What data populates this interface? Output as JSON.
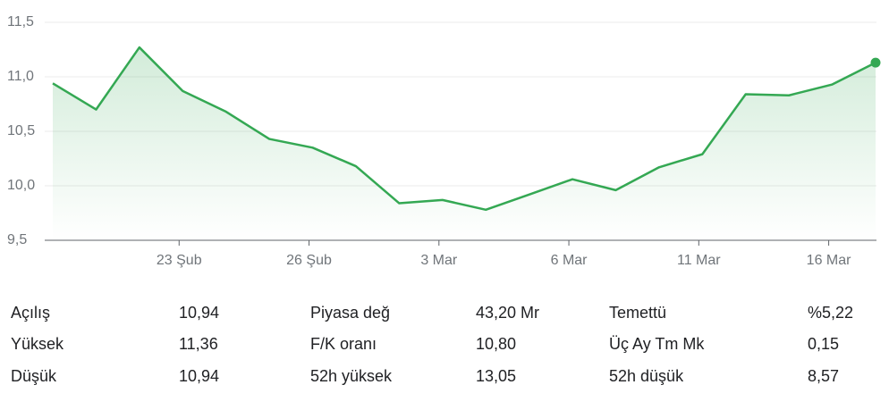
{
  "chart_data": {
    "type": "line",
    "color": "#34a853",
    "categories": [
      null,
      null,
      null,
      "23 Şub",
      null,
      null,
      "26 Şub",
      null,
      null,
      "3 Mar",
      null,
      null,
      "6 Mar",
      null,
      null,
      "11 Mar",
      null,
      null,
      "16 Mar",
      null
    ],
    "values": [
      10.94,
      10.7,
      11.27,
      10.87,
      10.68,
      10.43,
      10.35,
      10.18,
      9.84,
      9.87,
      9.78,
      9.92,
      10.06,
      9.96,
      10.17,
      10.29,
      10.84,
      10.83,
      10.93,
      11.13
    ],
    "ylim": [
      9.5,
      11.5
    ],
    "yticks": [
      {
        "value": 9.5,
        "label": "9,5"
      },
      {
        "value": 10,
        "label": "10,0"
      },
      {
        "value": 10.5,
        "label": "10,5"
      },
      {
        "value": 11,
        "label": "11,0"
      },
      {
        "value": 11.5,
        "label": "11,5"
      }
    ],
    "grid": true
  },
  "table": {
    "rows": [
      [
        "Açılış",
        "10,94",
        "Piyasa değ",
        "43,20 Mr",
        "Temettü",
        "%5,22"
      ],
      [
        "Yüksek",
        "11,36",
        "F/K oranı",
        "10,80",
        "Üç Ay Tm Mk",
        "0,15"
      ],
      [
        "Düşük",
        "10,94",
        "52h yüksek",
        "13,05",
        "52h düşük",
        "8,57"
      ]
    ]
  }
}
